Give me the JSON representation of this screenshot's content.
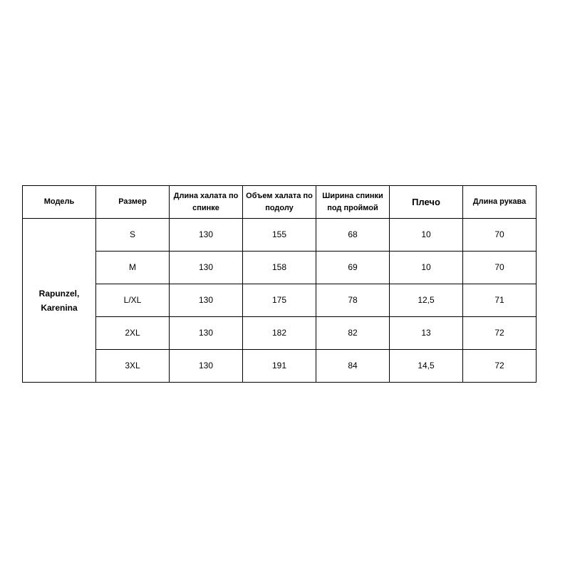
{
  "headers": [
    "Модель",
    "Размер",
    "Длина халата по спинке",
    "Объем халата по подолу",
    "Ширина спинки под проймой",
    "Плечо",
    "Длина рукава"
  ],
  "model": "Rapunzel, Karenina",
  "rows": [
    [
      "S",
      "130",
      "155",
      "68",
      "10",
      "70"
    ],
    [
      "M",
      "130",
      "158",
      "69",
      "10",
      "70"
    ],
    [
      "L/XL",
      "130",
      "175",
      "78",
      "12,5",
      "71"
    ],
    [
      "2XL",
      "130",
      "182",
      "82",
      "13",
      "72"
    ],
    [
      "3XL",
      "130",
      "191",
      "84",
      "14,5",
      "72"
    ]
  ]
}
